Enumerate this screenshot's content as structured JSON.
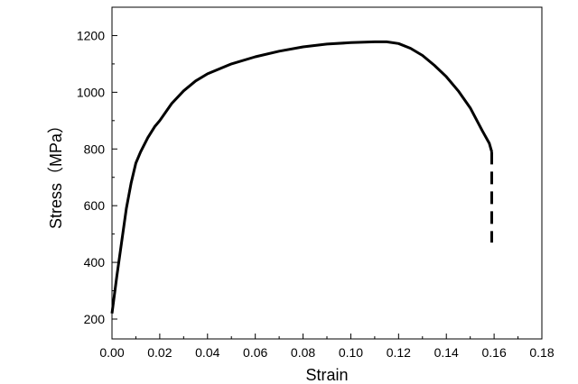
{
  "chart_data": {
    "type": "line",
    "title": "",
    "xlabel": "Strain",
    "ylabel": "Stress（MPa）",
    "xlim": [
      0.0,
      0.18
    ],
    "ylim": [
      130,
      1300
    ],
    "x_ticks": [
      0.0,
      0.02,
      0.04,
      0.06,
      0.08,
      0.1,
      0.12,
      0.14,
      0.16,
      0.18
    ],
    "x_tick_labels": [
      "0.00",
      "0.02",
      "0.04",
      "0.06",
      "0.08",
      "0.10",
      "0.12",
      "0.14",
      "0.16",
      "0.18"
    ],
    "y_ticks": [
      200,
      400,
      600,
      800,
      1000,
      1200
    ],
    "y_tick_labels": [
      "200",
      "400",
      "600",
      "800",
      "1000",
      "1200"
    ],
    "grid": false,
    "legend": "none",
    "line_color": "#000000",
    "series": [
      {
        "style": "solid",
        "x": [
          0.0,
          0.002,
          0.004,
          0.006,
          0.008,
          0.01,
          0.012,
          0.015,
          0.018,
          0.02,
          0.025,
          0.03,
          0.035,
          0.04,
          0.05,
          0.06,
          0.07,
          0.08,
          0.09,
          0.1,
          0.11,
          0.115,
          0.12,
          0.125,
          0.13,
          0.135,
          0.14,
          0.145,
          0.15,
          0.155,
          0.158,
          0.159
        ],
        "y": [
          220,
          350,
          470,
          590,
          680,
          750,
          790,
          840,
          880,
          900,
          960,
          1005,
          1040,
          1065,
          1100,
          1125,
          1145,
          1160,
          1170,
          1175,
          1178,
          1178,
          1172,
          1155,
          1130,
          1095,
          1055,
          1005,
          945,
          865,
          820,
          790
        ]
      },
      {
        "style": "dashed",
        "x": [
          0.159,
          0.159
        ],
        "y": [
          790,
          470
        ]
      }
    ]
  }
}
